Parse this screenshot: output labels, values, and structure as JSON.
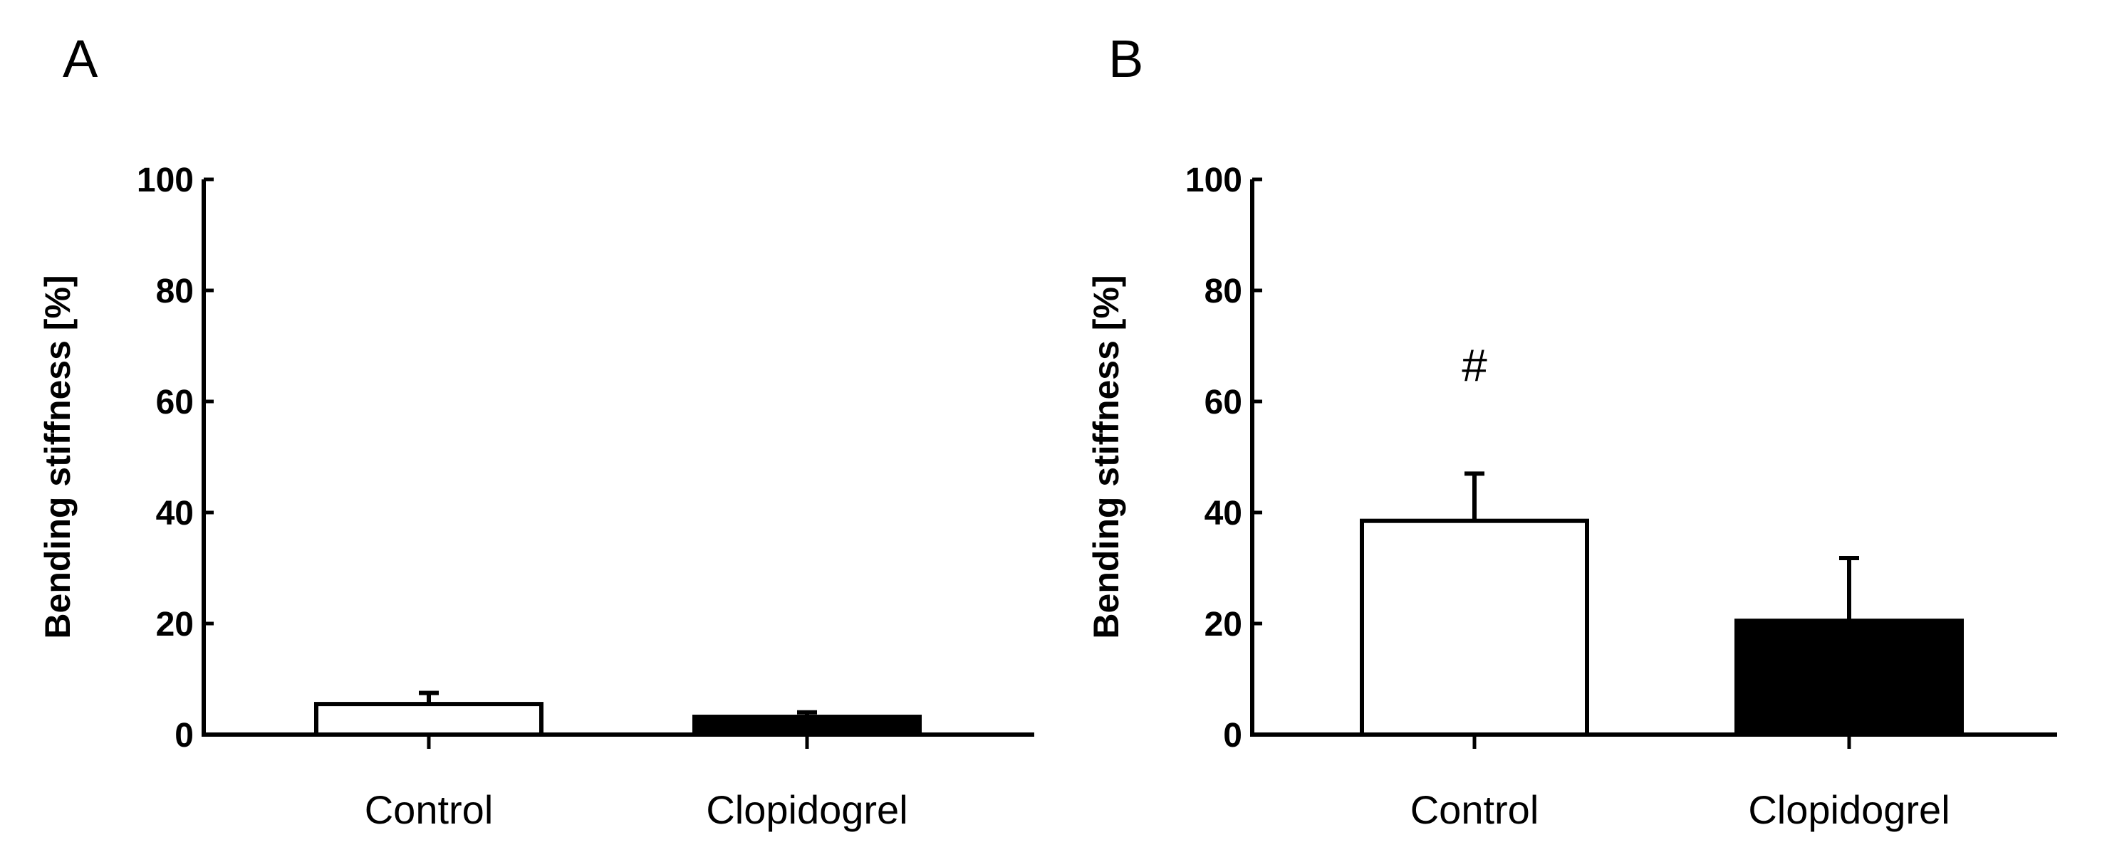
{
  "colors": {
    "axis": "#000000",
    "control_fill": "#ffffff",
    "clopidogrel_fill": "#000000",
    "stroke": "#000000"
  },
  "chart_data": [
    {
      "type": "bar",
      "panel_label": "A",
      "categories": [
        "Control",
        "Clopidogrel"
      ],
      "values": [
        5.5,
        3.2
      ],
      "errors": [
        2.0,
        0.8
      ],
      "ylabel": "Bending stiffness [%]",
      "ylim": [
        0,
        100
      ],
      "yticks": [
        "0",
        "20",
        "40",
        "60",
        "80",
        "100"
      ],
      "annotations": [],
      "grid": false,
      "legend": "none"
    },
    {
      "type": "bar",
      "panel_label": "B",
      "categories": [
        "Control",
        "Clopidogrel"
      ],
      "values": [
        38.5,
        20.5
      ],
      "errors": [
        8.5,
        11.3
      ],
      "ylabel": "Bending stiffness [%]",
      "ylim": [
        0,
        100
      ],
      "yticks": [
        "0",
        "20",
        "40",
        "60",
        "80",
        "100"
      ],
      "annotations": [
        {
          "category": "Control",
          "text": "#"
        }
      ],
      "grid": false,
      "legend": "none"
    }
  ]
}
